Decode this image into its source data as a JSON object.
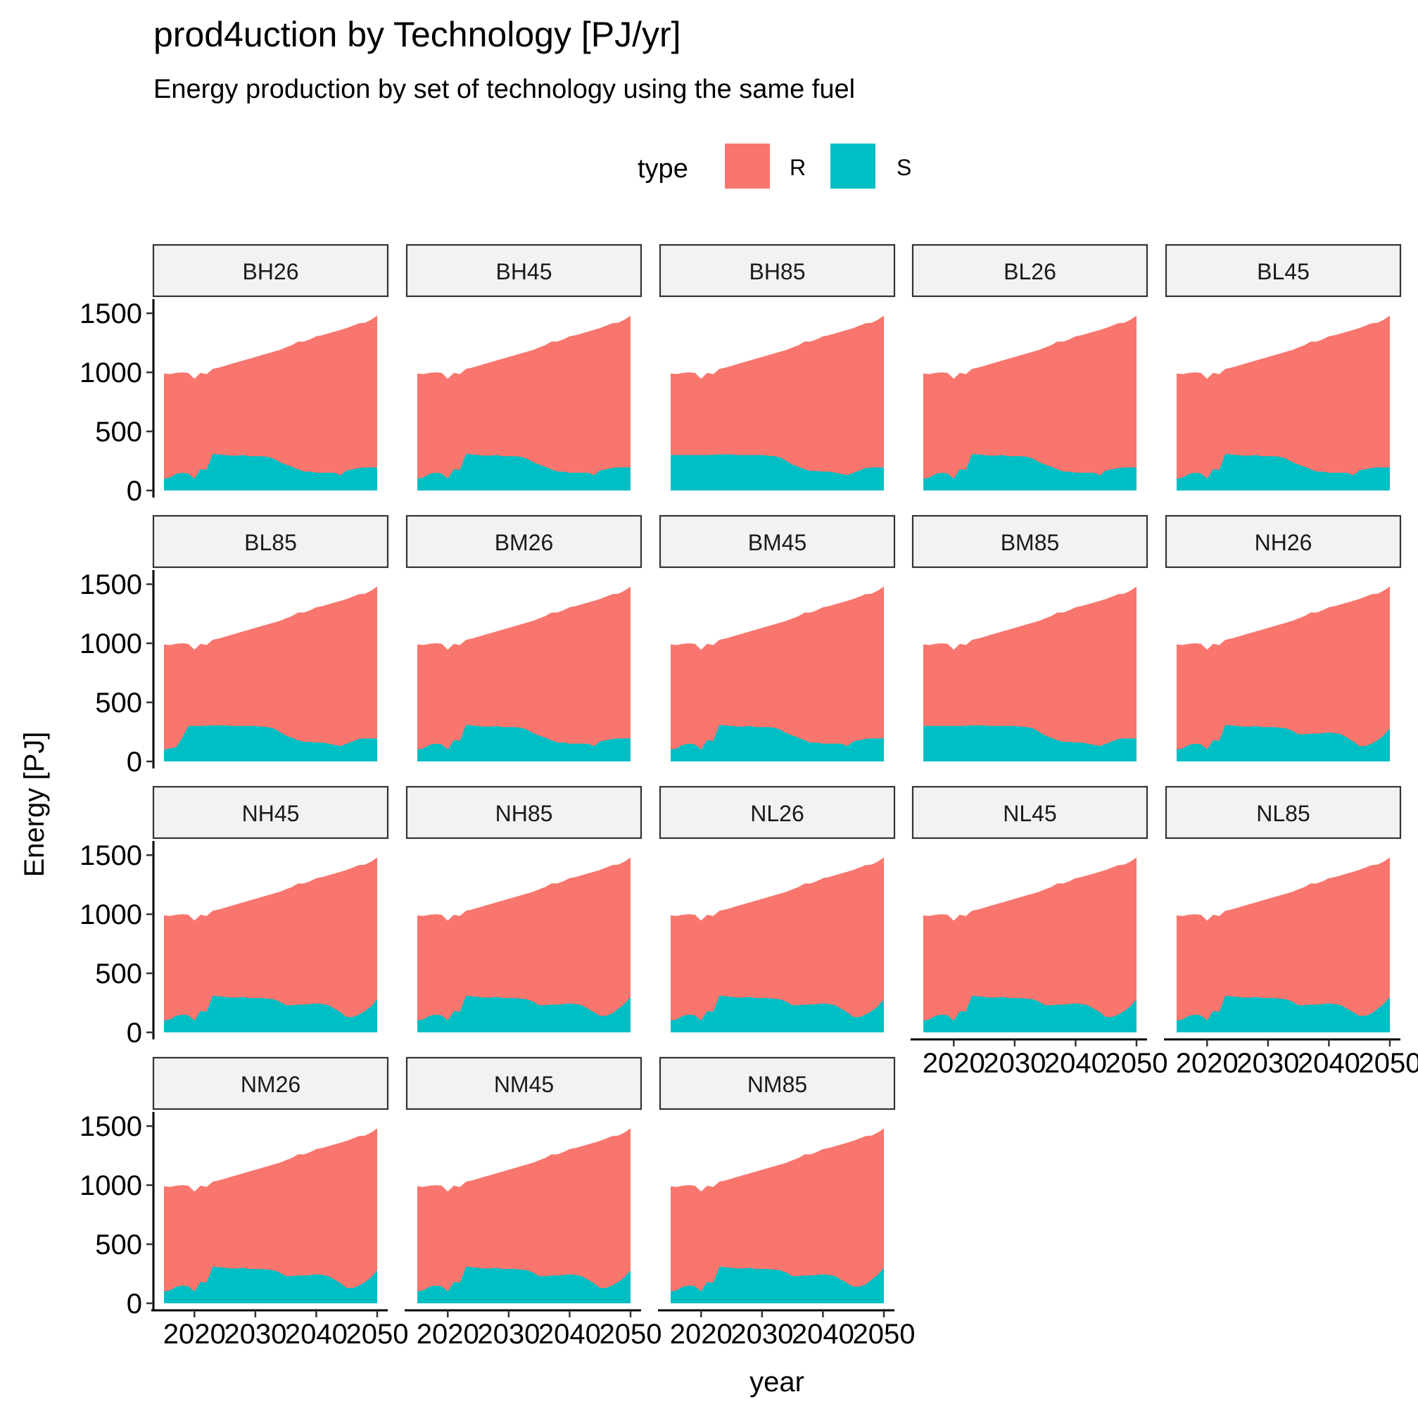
{
  "chart_data": {
    "type": "area",
    "title": "prod4uction by Technology [PJ/yr]",
    "subtitle": "Energy production by set of technology using the same fuel",
    "xlabel": "year",
    "ylabel": "Energy [PJ]",
    "legend": {
      "title": "type",
      "position": "top",
      "entries": [
        "R",
        "S"
      ]
    },
    "colors": {
      "R": "#F8766D",
      "S": "#00BFC4"
    },
    "xlim": [
      2015,
      2050
    ],
    "ylim": [
      0,
      1500
    ],
    "x_ticks": [
      2020,
      2030,
      2040,
      2050
    ],
    "x_tick_labels": [
      "2020",
      "2030",
      "2040",
      "2050"
    ],
    "y_ticks": [
      0,
      500,
      1000,
      1500
    ],
    "y_tick_labels": [
      "0",
      "500",
      "1000",
      "1500"
    ],
    "grid": false,
    "stacked": true,
    "x": [
      2015,
      2016,
      2017,
      2018,
      2019,
      2020,
      2021,
      2022,
      2023,
      2024,
      2025,
      2026,
      2027,
      2028,
      2029,
      2030,
      2031,
      2032,
      2033,
      2034,
      2035,
      2036,
      2037,
      2038,
      2039,
      2040,
      2041,
      2042,
      2043,
      2044,
      2045,
      2046,
      2047,
      2048,
      2049,
      2050
    ],
    "totals": [
      990,
      985,
      995,
      1000,
      995,
      945,
      995,
      985,
      1030,
      1040,
      1055,
      1070,
      1085,
      1100,
      1115,
      1130,
      1145,
      1160,
      1175,
      1190,
      1210,
      1230,
      1260,
      1260,
      1280,
      1305,
      1315,
      1330,
      1345,
      1360,
      1375,
      1395,
      1415,
      1420,
      1445,
      1480
    ],
    "s_profiles": {
      "A": [
        100,
        110,
        140,
        150,
        145,
        100,
        180,
        175,
        310,
        305,
        300,
        295,
        295,
        300,
        290,
        290,
        290,
        285,
        270,
        240,
        220,
        200,
        180,
        160,
        160,
        150,
        150,
        150,
        150,
        130,
        170,
        180,
        190,
        195,
        195,
        195
      ],
      "B": [
        300,
        300,
        300,
        300,
        300,
        300,
        300,
        302,
        305,
        305,
        305,
        300,
        300,
        300,
        300,
        300,
        295,
        290,
        280,
        250,
        220,
        200,
        180,
        165,
        165,
        160,
        160,
        150,
        140,
        130,
        150,
        170,
        190,
        195,
        195,
        195
      ],
      "C": [
        100,
        110,
        140,
        150,
        145,
        100,
        180,
        175,
        310,
        305,
        300,
        295,
        295,
        300,
        290,
        290,
        290,
        285,
        280,
        260,
        230,
        230,
        235,
        235,
        240,
        245,
        240,
        230,
        200,
        170,
        130,
        130,
        150,
        180,
        220,
        280
      ],
      "D": [
        100,
        110,
        140,
        150,
        145,
        100,
        180,
        175,
        310,
        305,
        300,
        295,
        295,
        300,
        290,
        290,
        290,
        285,
        280,
        260,
        230,
        230,
        235,
        235,
        240,
        245,
        240,
        230,
        200,
        170,
        140,
        140,
        160,
        200,
        240,
        300
      ],
      "E": [
        100,
        110,
        120,
        200,
        300,
        300,
        300,
        302,
        305,
        305,
        305,
        300,
        300,
        300,
        300,
        300,
        295,
        290,
        280,
        250,
        220,
        200,
        180,
        165,
        165,
        160,
        160,
        150,
        140,
        130,
        150,
        170,
        190,
        195,
        195,
        195
      ]
    },
    "panels": [
      {
        "label": "BH26",
        "S": "A"
      },
      {
        "label": "BH45",
        "S": "A"
      },
      {
        "label": "BH85",
        "S": "B"
      },
      {
        "label": "BL26",
        "S": "A"
      },
      {
        "label": "BL45",
        "S": "A"
      },
      {
        "label": "BL85",
        "S": "E"
      },
      {
        "label": "BM26",
        "S": "A"
      },
      {
        "label": "BM45",
        "S": "A"
      },
      {
        "label": "BM85",
        "S": "B"
      },
      {
        "label": "NH26",
        "S": "C"
      },
      {
        "label": "NH45",
        "S": "C"
      },
      {
        "label": "NH85",
        "S": "D"
      },
      {
        "label": "NL26",
        "S": "C"
      },
      {
        "label": "NL45",
        "S": "C"
      },
      {
        "label": "NL85",
        "S": "D"
      },
      {
        "label": "NM26",
        "S": "C"
      },
      {
        "label": "NM45",
        "S": "C"
      },
      {
        "label": "NM85",
        "S": "D"
      }
    ]
  }
}
